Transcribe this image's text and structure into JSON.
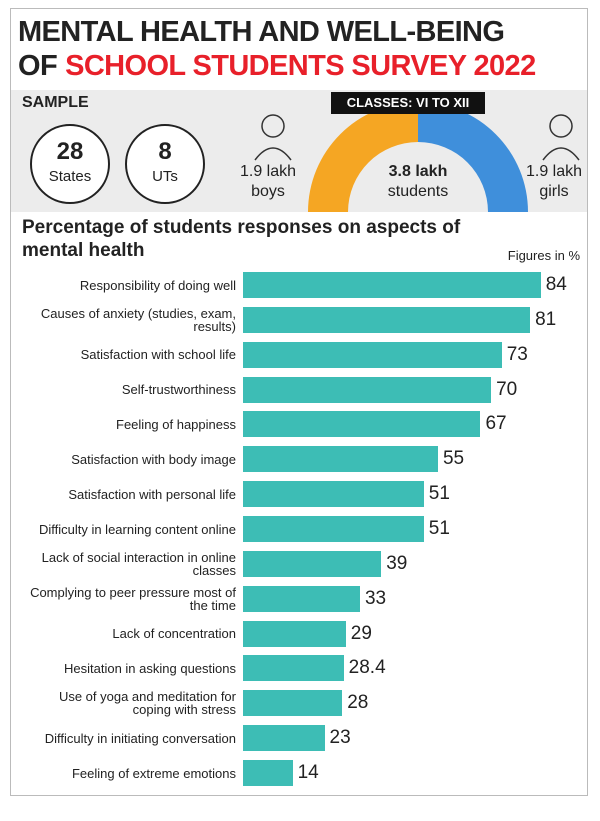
{
  "header": {
    "title_line1": "MENTAL HEALTH AND WELL-BEING",
    "title_line2_prefix": "OF",
    "title_line2_highlight": "SCHOOL STUDENTS SURVEY 2022"
  },
  "sample": {
    "label": "SAMPLE",
    "states": {
      "value": "28",
      "label": "States"
    },
    "uts": {
      "value": "8",
      "label": "UTs"
    },
    "boys": {
      "value": "1.9 lakh",
      "label": "boys"
    },
    "classes": "CLASSES: VI TO XII",
    "students": {
      "value": "3.8 lakh",
      "label": "students"
    },
    "girls": {
      "value": "1.9 lakh",
      "label": "girls"
    }
  },
  "chart_data": {
    "type": "bar",
    "orientation": "horizontal",
    "title": "Percentage of students responses on aspects of mental health",
    "note": "Figures in %",
    "categories": [
      "Responsibility of doing well",
      "Causes of anxiety (studies, exam, results)",
      "Satisfaction with school life",
      "Self-trustworthiness",
      "Feeling of happiness",
      "Satisfaction with body image",
      "Satisfaction with personal life",
      "Difficulty in learning content online",
      "Lack of social interaction in online classes",
      "Complying to peer pressure most of the time",
      "Lack of concentration",
      "Hesitation in asking questions",
      "Use of yoga and meditation for coping with stress",
      "Difficulty in initiating conversation",
      "Feeling of extreme emotions"
    ],
    "values": [
      84,
      81,
      73,
      70,
      67,
      55,
      51,
      51,
      39,
      33,
      29,
      28.4,
      28,
      23,
      14
    ],
    "color": "#3dbdb5",
    "xlim": [
      0,
      90
    ]
  }
}
